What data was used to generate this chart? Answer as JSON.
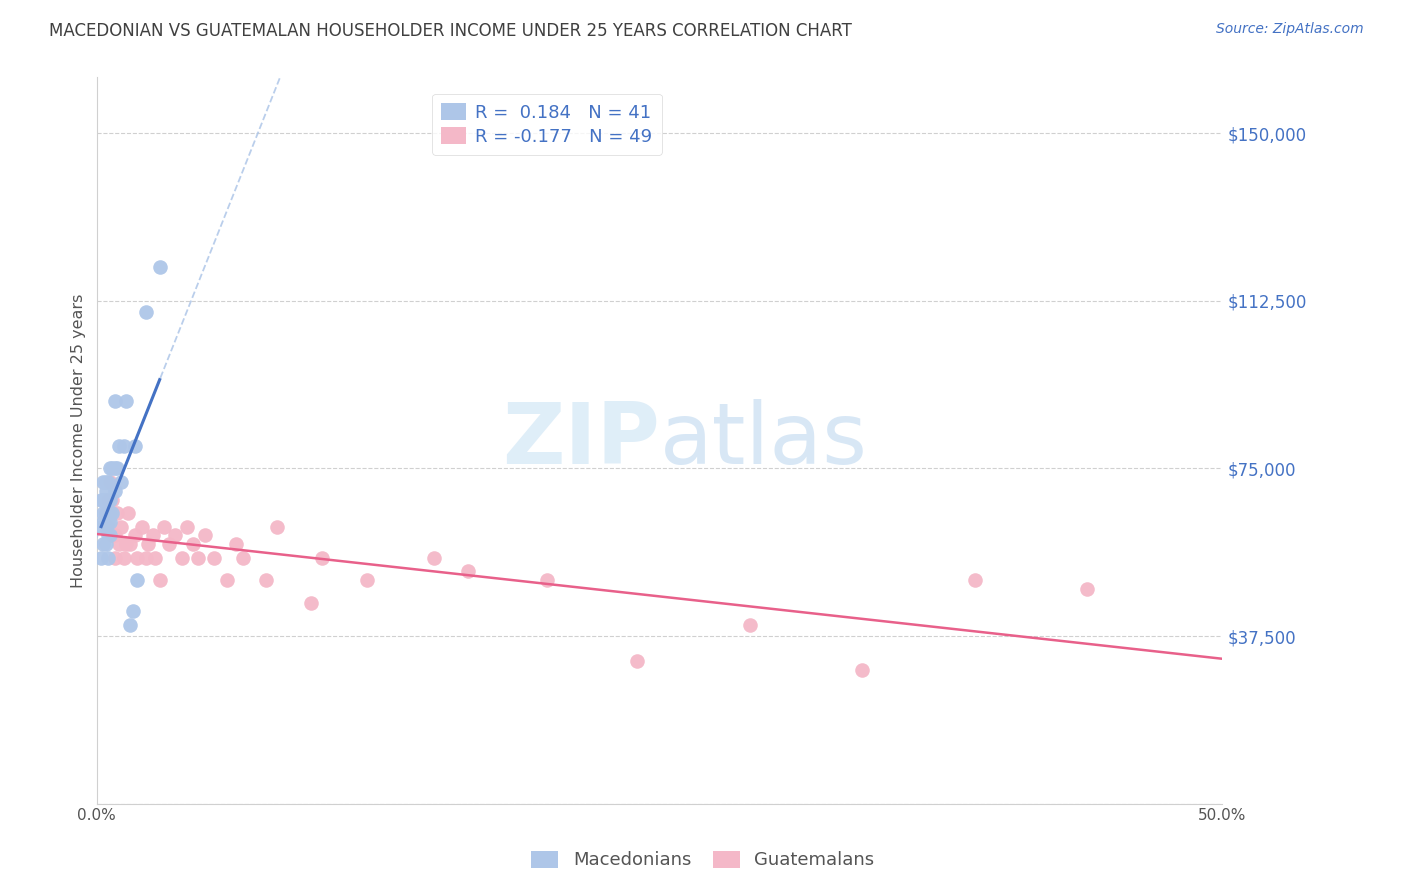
{
  "title": "MACEDONIAN VS GUATEMALAN HOUSEHOLDER INCOME UNDER 25 YEARS CORRELATION CHART",
  "source": "Source: ZipAtlas.com",
  "ylabel": "Householder Income Under 25 years",
  "xlim": [
    0,
    0.5
  ],
  "ylim": [
    0,
    162500
  ],
  "yticks": [
    0,
    37500,
    75000,
    112500,
    150000
  ],
  "ytick_labels": [
    "",
    "$37,500",
    "$75,000",
    "$112,500",
    "$150,000"
  ],
  "xticks": [
    0.0,
    0.1,
    0.2,
    0.3,
    0.4,
    0.5
  ],
  "xtick_labels": [
    "0.0%",
    "",
    "",
    "",
    "",
    "50.0%"
  ],
  "macedonian_color": "#aec6e8",
  "guatemalan_color": "#f4b8c8",
  "trend_mac_color": "#4472c4",
  "trend_guat_color": "#e8608a",
  "background_color": "#ffffff",
  "grid_color": "#d0d0d0",
  "title_color": "#404040",
  "axis_label_color": "#555555",
  "right_tick_color": "#4472c4",
  "mac_R": 0.184,
  "mac_N": 41,
  "guat_R": -0.177,
  "guat_N": 49,
  "macedonian_x": [
    0.002,
    0.002,
    0.002,
    0.003,
    0.003,
    0.003,
    0.003,
    0.003,
    0.004,
    0.004,
    0.004,
    0.004,
    0.004,
    0.004,
    0.005,
    0.005,
    0.005,
    0.005,
    0.005,
    0.005,
    0.006,
    0.006,
    0.006,
    0.006,
    0.006,
    0.007,
    0.007,
    0.008,
    0.008,
    0.008,
    0.009,
    0.01,
    0.011,
    0.012,
    0.013,
    0.015,
    0.016,
    0.017,
    0.018,
    0.022,
    0.028
  ],
  "macedonian_y": [
    55000,
    62000,
    68000,
    58000,
    63000,
    65000,
    68000,
    72000,
    58000,
    62000,
    65000,
    68000,
    70000,
    72000,
    55000,
    60000,
    63000,
    65000,
    68000,
    72000,
    60000,
    63000,
    65000,
    68000,
    75000,
    65000,
    75000,
    70000,
    75000,
    90000,
    75000,
    80000,
    72000,
    80000,
    90000,
    40000,
    43000,
    80000,
    50000,
    110000,
    120000
  ],
  "guatemalan_x": [
    0.004,
    0.005,
    0.005,
    0.006,
    0.006,
    0.007,
    0.007,
    0.008,
    0.008,
    0.009,
    0.01,
    0.011,
    0.012,
    0.013,
    0.014,
    0.015,
    0.017,
    0.018,
    0.02,
    0.022,
    0.023,
    0.025,
    0.026,
    0.028,
    0.03,
    0.032,
    0.035,
    0.038,
    0.04,
    0.043,
    0.045,
    0.048,
    0.052,
    0.058,
    0.062,
    0.065,
    0.075,
    0.08,
    0.095,
    0.1,
    0.12,
    0.15,
    0.165,
    0.2,
    0.24,
    0.29,
    0.34,
    0.39,
    0.44
  ],
  "guatemalan_y": [
    65000,
    62000,
    68000,
    65000,
    72000,
    60000,
    68000,
    55000,
    60000,
    65000,
    58000,
    62000,
    55000,
    58000,
    65000,
    58000,
    60000,
    55000,
    62000,
    55000,
    58000,
    60000,
    55000,
    50000,
    62000,
    58000,
    60000,
    55000,
    62000,
    58000,
    55000,
    60000,
    55000,
    50000,
    58000,
    55000,
    50000,
    62000,
    45000,
    55000,
    50000,
    55000,
    52000,
    50000,
    32000,
    40000,
    30000,
    50000,
    48000
  ]
}
